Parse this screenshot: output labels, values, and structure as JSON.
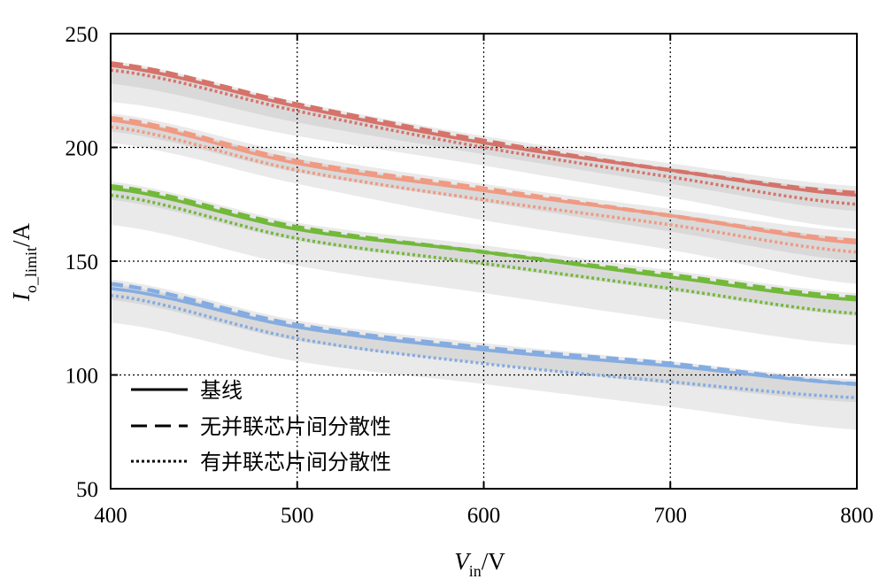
{
  "chart_data": {
    "type": "line",
    "xlabel": {
      "main": "V",
      "sub": "in",
      "unit": "/V"
    },
    "ylabel": {
      "main": "I",
      "sub": "o_limit",
      "unit": "/A"
    },
    "xlim": [
      400,
      800
    ],
    "ylim": [
      50,
      250
    ],
    "xticks": [
      400,
      500,
      600,
      700,
      800
    ],
    "yticks": [
      50,
      100,
      150,
      200,
      250
    ],
    "grid": "dotted vertical and horizontal at 500, 600, 700 and 200, 150, 100",
    "legend_placement": "lower-left",
    "legend": [
      {
        "label": "基线",
        "style": "solid"
      },
      {
        "label": "无并联芯片间分散性",
        "style": "dashed"
      },
      {
        "label": "有并联芯片间分散性",
        "style": "dotted"
      }
    ],
    "x": [
      400,
      500,
      600,
      700,
      800
    ],
    "groups": [
      {
        "color": "#d5736a",
        "baseline": [
          236,
          218,
          202,
          190,
          179
        ],
        "no_dispersion": [
          237,
          219,
          203,
          190,
          180
        ],
        "with_dispersion": [
          234,
          216,
          200,
          187,
          175
        ],
        "band_outer": {
          "upper": [
            238,
            220,
            205,
            193,
            183
          ],
          "lower": [
            220,
            205,
            192,
            178,
            164
          ]
        },
        "band_inner": {
          "upper": [
            237,
            219,
            203,
            191,
            181
          ],
          "lower": [
            228,
            211,
            197,
            184,
            172
          ]
        }
      },
      {
        "color": "#f09a83",
        "baseline": [
          212,
          193,
          181,
          170,
          158
        ],
        "no_dispersion": [
          213,
          194,
          182,
          170,
          159
        ],
        "with_dispersion": [
          209,
          190,
          177,
          166,
          154
        ],
        "band_outer": {
          "upper": [
            215,
            197,
            184,
            173,
            163
          ],
          "lower": [
            202,
            184,
            168,
            155,
            140
          ]
        },
        "band_inner": {
          "upper": [
            213,
            195,
            182,
            171,
            160
          ],
          "lower": [
            207,
            189,
            176,
            163,
            150
          ]
        }
      },
      {
        "color": "#72b93a",
        "baseline": [
          182,
          164,
          154,
          143,
          133
        ],
        "no_dispersion": [
          183,
          165,
          154,
          144,
          134
        ],
        "with_dispersion": [
          179,
          160,
          149,
          138,
          127
        ],
        "band_outer": {
          "upper": [
            185,
            167,
            157,
            146,
            136
          ],
          "lower": [
            166,
            148,
            136,
            124,
            113
          ]
        },
        "band_inner": {
          "upper": [
            183,
            165,
            155,
            144,
            134
          ],
          "lower": [
            177,
            159,
            148,
            137,
            126
          ]
        }
      },
      {
        "color": "#85ace1",
        "baseline": [
          138,
          121,
          111,
          104,
          96
        ],
        "no_dispersion": [
          140,
          122,
          112,
          105,
          96
        ],
        "with_dispersion": [
          135,
          116,
          105,
          97,
          90
        ],
        "band_outer": {
          "upper": [
            142,
            124,
            114,
            106,
            98
          ],
          "lower": [
            123,
            106,
            96,
            86,
            76
          ]
        },
        "band_inner": {
          "upper": [
            140,
            122,
            112,
            104,
            97
          ],
          "lower": [
            133,
            115,
            105,
            96,
            88
          ]
        }
      }
    ]
  }
}
